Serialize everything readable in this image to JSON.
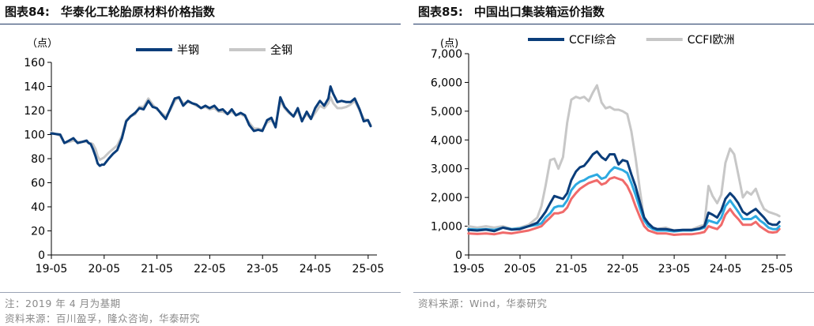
{
  "left": {
    "title_no": "图表84:",
    "title_text": "华泰化工轮胎原材料价格指数",
    "notes": [
      "注：2019 年 4 月为基期",
      "资料来源：百川盈孚，隆众咨询，华泰研究"
    ],
    "colors": {
      "series1": "#0a3d7a",
      "series2": "#c7c7c7"
    },
    "chart_data": {
      "type": "line",
      "ylabel": "（点）",
      "ylim": [
        0,
        160
      ],
      "y_ticks": [
        0,
        20,
        40,
        60,
        80,
        100,
        120,
        140,
        160
      ],
      "xlim": [
        2019.333,
        2025.5
      ],
      "x_tick_labels": [
        "19-05",
        "20-05",
        "21-05",
        "22-05",
        "23-05",
        "24-05",
        "25-05"
      ],
      "x_tick_positions": [
        2019.333,
        2020.333,
        2021.333,
        2022.333,
        2023.333,
        2024.333,
        2025.333
      ],
      "legend_position": "top-center",
      "series": [
        {
          "name": "半钢",
          "color": "#0a3d7a",
          "x": [
            2019.33,
            2019.5,
            2019.58,
            2019.67,
            2019.75,
            2019.83,
            2019.92,
            2020.0,
            2020.04,
            2020.08,
            2020.12,
            2020.17,
            2020.21,
            2020.25,
            2020.29,
            2020.33,
            2020.42,
            2020.5,
            2020.58,
            2020.67,
            2020.75,
            2020.83,
            2020.92,
            2021.0,
            2021.08,
            2021.17,
            2021.25,
            2021.33,
            2021.42,
            2021.5,
            2021.58,
            2021.67,
            2021.75,
            2021.83,
            2021.92,
            2022.0,
            2022.08,
            2022.17,
            2022.25,
            2022.33,
            2022.42,
            2022.5,
            2022.58,
            2022.67,
            2022.75,
            2022.83,
            2022.92,
            2023.0,
            2023.08,
            2023.17,
            2023.25,
            2023.33,
            2023.42,
            2023.5,
            2023.58,
            2023.67,
            2023.75,
            2023.83,
            2023.92,
            2024.0,
            2024.08,
            2024.17,
            2024.25,
            2024.33,
            2024.42,
            2024.5,
            2024.58,
            2024.62,
            2024.67,
            2024.75,
            2024.83,
            2024.92,
            2025.0,
            2025.08,
            2025.17,
            2025.25,
            2025.33,
            2025.38
          ],
          "values": [
            101,
            100,
            93,
            95,
            97,
            93,
            94,
            95,
            93,
            92,
            88,
            82,
            76,
            74,
            75,
            75,
            80,
            84,
            87,
            97,
            111,
            115,
            118,
            122,
            121,
            128,
            123,
            122,
            117,
            113,
            121,
            130,
            131,
            124,
            128,
            126,
            125,
            122,
            124,
            122,
            124,
            120,
            121,
            117,
            121,
            116,
            118,
            116,
            108,
            103,
            104,
            103,
            112,
            114,
            106,
            131,
            123,
            119,
            115,
            122,
            111,
            119,
            113,
            122,
            128,
            124,
            130,
            140,
            134,
            127,
            128,
            127,
            127,
            130,
            121,
            111,
            112,
            107
          ]
        },
        {
          "name": "全钢",
          "color": "#c7c7c7",
          "x": [
            2019.33,
            2019.5,
            2019.58,
            2019.67,
            2019.75,
            2019.83,
            2019.92,
            2020.0,
            2020.04,
            2020.08,
            2020.12,
            2020.17,
            2020.21,
            2020.25,
            2020.29,
            2020.33,
            2020.42,
            2020.5,
            2020.58,
            2020.67,
            2020.75,
            2020.83,
            2020.92,
            2021.0,
            2021.08,
            2021.17,
            2021.25,
            2021.33,
            2021.42,
            2021.5,
            2021.58,
            2021.67,
            2021.75,
            2021.83,
            2021.92,
            2022.0,
            2022.08,
            2022.17,
            2022.25,
            2022.33,
            2022.42,
            2022.5,
            2022.58,
            2022.67,
            2022.75,
            2022.83,
            2022.92,
            2023.0,
            2023.08,
            2023.17,
            2023.25,
            2023.33,
            2023.42,
            2023.5,
            2023.58,
            2023.67,
            2023.75,
            2023.83,
            2023.92,
            2024.0,
            2024.08,
            2024.17,
            2024.25,
            2024.33,
            2024.42,
            2024.5,
            2024.58,
            2024.62,
            2024.67,
            2024.75,
            2024.83,
            2024.92,
            2025.0,
            2025.08,
            2025.17,
            2025.25,
            2025.33,
            2025.38
          ],
          "values": [
            102,
            99,
            93,
            94,
            95,
            94,
            94,
            94,
            93,
            93,
            92,
            88,
            82,
            79,
            80,
            81,
            85,
            88,
            91,
            99,
            112,
            115,
            117,
            123,
            123,
            130,
            125,
            121,
            118,
            115,
            120,
            128,
            131,
            126,
            127,
            126,
            124,
            122,
            123,
            121,
            122,
            119,
            119,
            117,
            119,
            116,
            117,
            115,
            110,
            105,
            105,
            104,
            110,
            112,
            107,
            128,
            122,
            118,
            115,
            120,
            112,
            117,
            113,
            118,
            124,
            122,
            126,
            131,
            126,
            122,
            122,
            123,
            125,
            128,
            120,
            113,
            112,
            108
          ]
        }
      ]
    }
  },
  "right": {
    "title_no": "图表85:",
    "title_text": "中国出口集装箱运价指数",
    "notes": [
      "资料来源：Wind，华泰研究"
    ],
    "colors": {
      "ccfi": "#0a3d7a",
      "ccfi_europe": "#c7c7c7",
      "series3": "#2eaae1",
      "series4": "#f06a6a"
    },
    "chart_data": {
      "type": "line",
      "ylabel": "(点)",
      "ylim": [
        0,
        7000
      ],
      "y_ticks": [
        0,
        1000,
        2000,
        3000,
        4000,
        5000,
        6000,
        7000
      ],
      "y_tick_labels": [
        "0",
        "1,000",
        "2,000",
        "3,000",
        "4,000",
        "5,000",
        "6,000",
        "7,000"
      ],
      "xlim": [
        2019.333,
        2025.5
      ],
      "x_tick_labels": [
        "19-05",
        "20-05",
        "21-05",
        "22-05",
        "23-05",
        "24-05",
        "25-05"
      ],
      "x_tick_positions": [
        2019.333,
        2020.333,
        2021.333,
        2022.333,
        2023.333,
        2024.333,
        2025.333
      ],
      "legend_position": "top-center",
      "series": [
        {
          "name": "CCFI综合",
          "color": "#0a3d7a",
          "x": [
            2019.33,
            2019.5,
            2019.67,
            2019.83,
            2020.0,
            2020.17,
            2020.33,
            2020.5,
            2020.67,
            2020.75,
            2020.83,
            2020.92,
            2021.0,
            2021.08,
            2021.17,
            2021.25,
            2021.33,
            2021.42,
            2021.5,
            2021.58,
            2021.67,
            2021.75,
            2021.83,
            2021.92,
            2022.0,
            2022.08,
            2022.17,
            2022.25,
            2022.33,
            2022.42,
            2022.5,
            2022.58,
            2022.67,
            2022.75,
            2022.83,
            2022.92,
            2023.0,
            2023.17,
            2023.33,
            2023.5,
            2023.67,
            2023.83,
            2023.92,
            2024.0,
            2024.08,
            2024.17,
            2024.25,
            2024.33,
            2024.42,
            2024.5,
            2024.58,
            2024.67,
            2024.75,
            2024.83,
            2024.92,
            2025.0,
            2025.08,
            2025.17,
            2025.25,
            2025.33,
            2025.38
          ],
          "values": [
            870,
            850,
            880,
            830,
            950,
            880,
            900,
            1000,
            1120,
            1300,
            1500,
            1800,
            2050,
            2000,
            1950,
            2150,
            2600,
            2900,
            3050,
            3100,
            3300,
            3500,
            3600,
            3400,
            3300,
            3500,
            3500,
            3150,
            3300,
            3250,
            2800,
            2400,
            1800,
            1300,
            1100,
            950,
            900,
            900,
            850,
            870,
            870,
            920,
            1000,
            1470,
            1400,
            1300,
            1550,
            1950,
            2150,
            2000,
            1800,
            1500,
            1400,
            1500,
            1600,
            1450,
            1300,
            1100,
            1050,
            1050,
            1150
          ]
        },
        {
          "name": "CCFI欧洲",
          "color": "#c7c7c7",
          "x": [
            2019.33,
            2019.5,
            2019.67,
            2019.83,
            2020.0,
            2020.17,
            2020.33,
            2020.5,
            2020.67,
            2020.75,
            2020.83,
            2020.92,
            2021.0,
            2021.08,
            2021.17,
            2021.25,
            2021.33,
            2021.42,
            2021.5,
            2021.58,
            2021.67,
            2021.75,
            2021.83,
            2021.92,
            2022.0,
            2022.08,
            2022.17,
            2022.25,
            2022.33,
            2022.42,
            2022.5,
            2022.58,
            2022.67,
            2022.75,
            2022.83,
            2022.92,
            2023.0,
            2023.17,
            2023.33,
            2023.5,
            2023.67,
            2023.83,
            2023.92,
            2024.0,
            2024.08,
            2024.17,
            2024.25,
            2024.33,
            2024.42,
            2024.5,
            2024.58,
            2024.67,
            2024.75,
            2024.83,
            2024.92,
            2025.0,
            2025.08,
            2025.17,
            2025.25,
            2025.33,
            2025.38
          ],
          "values": [
            1000,
            950,
            1000,
            950,
            1000,
            900,
            950,
            1050,
            1300,
            1700,
            2400,
            3300,
            3350,
            3000,
            3400,
            4600,
            5400,
            5500,
            5450,
            5500,
            5350,
            5650,
            5900,
            5300,
            5100,
            5150,
            5050,
            5050,
            5000,
            4900,
            4300,
            3400,
            2200,
            1200,
            1050,
            950,
            900,
            950,
            850,
            870,
            880,
            1000,
            1050,
            2400,
            2050,
            1800,
            2100,
            3200,
            3700,
            3500,
            2800,
            2000,
            2200,
            2100,
            2300,
            1900,
            1600,
            1500,
            1450,
            1400,
            1350
          ]
        },
        {
          "name": "",
          "color": "#2eaae1",
          "x": [
            2019.33,
            2019.5,
            2019.67,
            2019.83,
            2020.0,
            2020.17,
            2020.33,
            2020.5,
            2020.67,
            2020.75,
            2020.83,
            2020.92,
            2021.0,
            2021.08,
            2021.17,
            2021.25,
            2021.33,
            2021.42,
            2021.5,
            2021.58,
            2021.67,
            2021.75,
            2021.83,
            2021.92,
            2022.0,
            2022.08,
            2022.17,
            2022.25,
            2022.33,
            2022.42,
            2022.5,
            2022.58,
            2022.67,
            2022.75,
            2022.83,
            2022.92,
            2023.0,
            2023.17,
            2023.33,
            2023.5,
            2023.67,
            2023.83,
            2023.92,
            2024.0,
            2024.08,
            2024.17,
            2024.25,
            2024.33,
            2024.42,
            2024.5,
            2024.58,
            2024.67,
            2024.75,
            2024.83,
            2024.92,
            2025.0,
            2025.08,
            2025.17,
            2025.25,
            2025.33,
            2025.38
          ],
          "values": [
            900,
            880,
            900,
            870,
            950,
            900,
            920,
            1000,
            1050,
            1100,
            1300,
            1450,
            1650,
            1700,
            1700,
            1900,
            2250,
            2450,
            2550,
            2600,
            2700,
            2750,
            2800,
            2650,
            2700,
            2900,
            3050,
            3000,
            2950,
            2850,
            2500,
            2100,
            1600,
            1200,
            1000,
            900,
            850,
            850,
            820,
            850,
            850,
            900,
            950,
            1200,
            1150,
            1100,
            1300,
            1700,
            1900,
            1700,
            1500,
            1250,
            1250,
            1250,
            1350,
            1200,
            1100,
            950,
            900,
            900,
            1000
          ]
        },
        {
          "name": "",
          "color": "#f06a6a",
          "x": [
            2019.33,
            2019.5,
            2019.67,
            2019.83,
            2020.0,
            2020.17,
            2020.33,
            2020.5,
            2020.67,
            2020.75,
            2020.83,
            2020.92,
            2021.0,
            2021.08,
            2021.17,
            2021.25,
            2021.33,
            2021.42,
            2021.5,
            2021.58,
            2021.67,
            2021.75,
            2021.83,
            2021.92,
            2022.0,
            2022.08,
            2022.17,
            2022.25,
            2022.33,
            2022.42,
            2022.5,
            2022.58,
            2022.67,
            2022.75,
            2022.83,
            2022.92,
            2023.0,
            2023.17,
            2023.33,
            2023.5,
            2023.67,
            2023.83,
            2023.92,
            2024.0,
            2024.08,
            2024.17,
            2024.25,
            2024.33,
            2024.42,
            2024.5,
            2024.58,
            2024.67,
            2024.75,
            2024.83,
            2024.92,
            2025.0,
            2025.08,
            2025.17,
            2025.25,
            2025.33,
            2025.38
          ],
          "values": [
            750,
            730,
            750,
            720,
            780,
            750,
            800,
            850,
            950,
            1000,
            1150,
            1300,
            1450,
            1450,
            1500,
            1650,
            1950,
            2150,
            2300,
            2400,
            2500,
            2550,
            2600,
            2450,
            2500,
            2650,
            2700,
            2650,
            2600,
            2400,
            2100,
            1700,
            1300,
            1000,
            850,
            800,
            750,
            750,
            700,
            720,
            720,
            760,
            800,
            1000,
            950,
            900,
            1050,
            1400,
            1600,
            1400,
            1250,
            1050,
            1050,
            1050,
            1150,
            1000,
            900,
            800,
            780,
            800,
            900
          ]
        }
      ]
    }
  }
}
